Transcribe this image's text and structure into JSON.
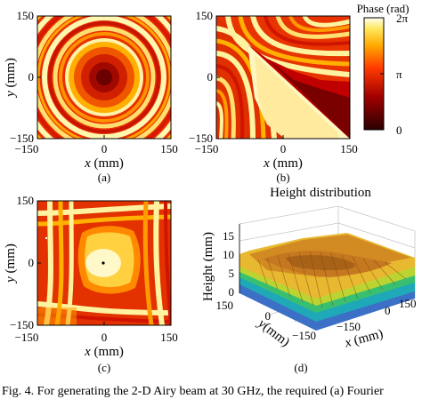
{
  "panels": [
    {
      "id": "a",
      "caption": "(a)",
      "xlabel_var": "x",
      "xlabel_unit": " (mm)",
      "ylabel_var": "y",
      "ylabel_unit": " (mm)",
      "xticks": [
        "−150",
        "0",
        "150"
      ],
      "yticks": [
        "150",
        "0",
        "−150"
      ]
    },
    {
      "id": "b",
      "caption": "(b)",
      "xlabel_var": "x",
      "xlabel_unit": " (mm)",
      "xticks": [
        "−150",
        "0",
        "150"
      ],
      "yticks": [
        "150",
        "0",
        "−150"
      ]
    },
    {
      "id": "c",
      "caption": "(c)",
      "xlabel_var": "x",
      "xlabel_unit": " (mm)",
      "ylabel_var": "y",
      "ylabel_unit": " (mm)",
      "xticks": [
        "−150",
        "0",
        "150"
      ],
      "yticks": [
        "150",
        "0",
        "−150"
      ]
    }
  ],
  "colorbar": {
    "title": "Phase (rad)",
    "ticks": [
      "2π",
      "π",
      "0"
    ],
    "colormap": "hot"
  },
  "panel_d": {
    "title": "Height distribution",
    "caption": "(d)",
    "zlabel": "Height (mm)",
    "zticks": [
      "15",
      "10",
      "5",
      "0"
    ],
    "x_ticks": [
      "−150",
      "0",
      "150"
    ],
    "y_ticks": [
      "150",
      "0",
      "−150"
    ],
    "xlabel_var": "x",
    "xlabel_unit": " (mm)",
    "ylabel_var": "y",
    "ylabel_unit": "(mm)"
  },
  "figure_caption": "Fig. 4.   For generating the 2-D Airy beam at 30 GHz, the required (a) Fourier"
}
